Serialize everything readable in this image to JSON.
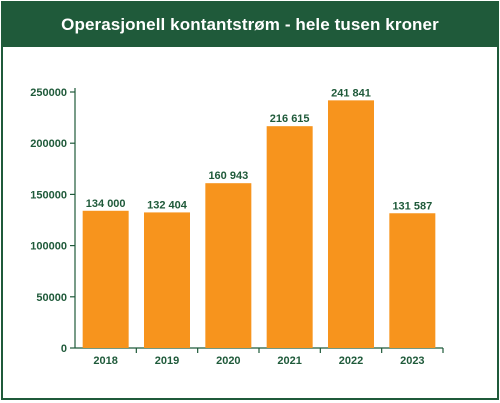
{
  "chart_data": {
    "type": "bar",
    "title": "Operasjonell kontantstrøm - hele tusen kroner",
    "categories": [
      "2018",
      "2019",
      "2020",
      "2021",
      "2022",
      "2023"
    ],
    "values": [
      134000,
      132404,
      160943,
      216615,
      241841,
      131587
    ],
    "value_labels": [
      "134 000",
      "132 404",
      "160 943",
      "216 615",
      "241 841",
      "131 587"
    ],
    "xlabel": "",
    "ylabel": "",
    "ylim": [
      0,
      250000
    ],
    "y_ticks": [
      0,
      50000,
      100000,
      150000,
      200000,
      250000
    ],
    "y_tick_labels": [
      "0",
      "50000",
      "100000",
      "150000",
      "200000",
      "250000"
    ],
    "grid": false,
    "legend": "none",
    "colors": {
      "bar": "#f7941d",
      "frame": "#1f5a3a",
      "text": "#1f5a3a",
      "axis": "#1f5a3a"
    }
  }
}
